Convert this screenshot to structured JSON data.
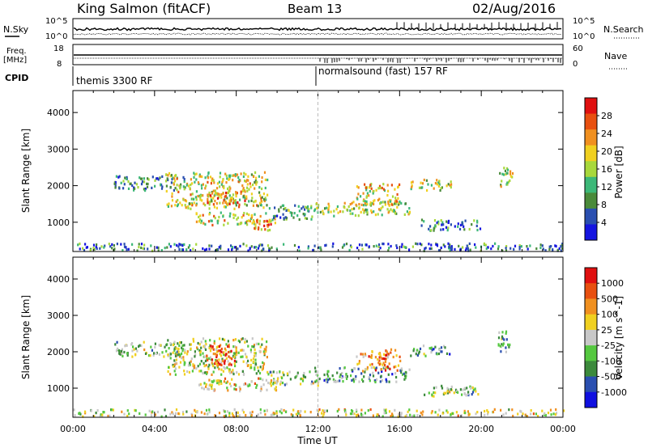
{
  "header": {
    "title": "King Salmon (fitACF)",
    "beam": "Beam 13",
    "date": "02/Aug/2016"
  },
  "strip_labels": {
    "nsky": "N.Sky",
    "nsearch": "N.Search",
    "freq": "Freq.",
    "freq_unit": "[MHz]",
    "nave": "Nave",
    "cpid": "CPID"
  },
  "strip_ticks": {
    "noise_top_left": "10^5",
    "noise_bottom_left": "10^0",
    "noise_top_right": "10^5",
    "noise_bottom_right": "10^0",
    "freq_top": "18",
    "freq_bottom": "8",
    "nave_top": "60",
    "nave_bottom": "0"
  },
  "cpid": {
    "mode1": "themis 3300 RF",
    "mode2": "normalsound (fast) 157 RF"
  },
  "chart_data": [
    {
      "type": "heatmap",
      "panel": "power",
      "ylabel": "Slant Range [km]",
      "xlabel": "Time UT",
      "x_ticks": [
        "00:00",
        "04:00",
        "08:00",
        "12:00",
        "16:00",
        "20:00",
        "00:00"
      ],
      "y_ticks": [
        "1000",
        "2000",
        "3000",
        "4000"
      ],
      "ylim": [
        200,
        4600
      ],
      "xlim_hours": [
        0,
        24
      ],
      "colorbar_label": "Power [dB]",
      "colorbar_ticks": [
        "4",
        "8",
        "12",
        "16",
        "20",
        "24",
        "28"
      ],
      "colorbar_range": [
        0,
        30
      ],
      "colors": [
        "#1515e0",
        "#2a4fb0",
        "#4a8a3a",
        "#3cb878",
        "#a8d83c",
        "#f0d020",
        "#f09020",
        "#e85010",
        "#e01010"
      ],
      "scatter_regions": [
        {
          "t0": 2.0,
          "t1": 5.5,
          "r0": 1900,
          "r1": 2300,
          "level": 0.3
        },
        {
          "t0": 4.5,
          "t1": 9.5,
          "r0": 1400,
          "r1": 2400,
          "level": 0.55
        },
        {
          "t0": 6.5,
          "t1": 8.5,
          "r0": 1500,
          "r1": 1900,
          "level": 0.7
        },
        {
          "t0": 6.0,
          "t1": 10.0,
          "r0": 950,
          "r1": 1300,
          "level": 0.6
        },
        {
          "t0": 8.5,
          "t1": 9.8,
          "r0": 800,
          "r1": 1100,
          "level": 0.75
        },
        {
          "t0": 9.5,
          "t1": 12.0,
          "r0": 1100,
          "r1": 1500,
          "level": 0.35
        },
        {
          "t0": 11.8,
          "t1": 16.5,
          "r0": 1200,
          "r1": 1600,
          "level": 0.5
        },
        {
          "t0": 13.8,
          "t1": 16.0,
          "r0": 1500,
          "r1": 2100,
          "level": 0.6
        },
        {
          "t0": 16.5,
          "t1": 18.5,
          "r0": 1900,
          "r1": 2200,
          "level": 0.5
        },
        {
          "t0": 17.0,
          "t1": 20.0,
          "r0": 800,
          "r1": 1100,
          "level": 0.3
        },
        {
          "t0": 20.8,
          "t1": 21.5,
          "r0": 2000,
          "r1": 2600,
          "level": 0.5
        },
        {
          "t0": 0.0,
          "t1": 24.0,
          "r0": 250,
          "r1": 450,
          "level": 0.25
        }
      ]
    },
    {
      "type": "heatmap",
      "panel": "velocity",
      "ylabel": "Slant Range [km]",
      "xlabel": "Time UT",
      "x_ticks": [
        "00:00",
        "04:00",
        "08:00",
        "12:00",
        "16:00",
        "20:00",
        "00:00"
      ],
      "y_ticks": [
        "1000",
        "2000",
        "3000",
        "4000"
      ],
      "ylim": [
        200,
        4600
      ],
      "xlim_hours": [
        0,
        24
      ],
      "colorbar_label": "Velocity [m s^-1]",
      "colorbar_ticks": [
        "1000",
        "500",
        "100",
        "25",
        "-25",
        "-100",
        "-500",
        "-1000"
      ],
      "colors": [
        "#1010e0",
        "#2a4fb0",
        "#3c8a3c",
        "#55c840",
        "#c8c8c8",
        "#f0d020",
        "#f09020",
        "#e85010",
        "#e01010"
      ],
      "scatter_regions": [
        {
          "t0": 2.0,
          "t1": 5.5,
          "r0": 1900,
          "r1": 2300,
          "level": 0.45
        },
        {
          "t0": 4.5,
          "t1": 9.5,
          "r0": 1400,
          "r1": 2400,
          "level": 0.5
        },
        {
          "t0": 6.5,
          "t1": 8.0,
          "r0": 1600,
          "r1": 2200,
          "level": 0.85
        },
        {
          "t0": 6.0,
          "t1": 10.0,
          "r0": 950,
          "r1": 1300,
          "level": 0.6
        },
        {
          "t0": 9.5,
          "t1": 12.0,
          "r0": 1100,
          "r1": 1500,
          "level": 0.45
        },
        {
          "t0": 11.8,
          "t1": 16.5,
          "r0": 1200,
          "r1": 1600,
          "level": 0.3
        },
        {
          "t0": 13.8,
          "t1": 16.0,
          "r0": 1500,
          "r1": 2100,
          "level": 0.75
        },
        {
          "t0": 16.5,
          "t1": 18.5,
          "r0": 1900,
          "r1": 2200,
          "level": 0.35
        },
        {
          "t0": 17.0,
          "t1": 20.0,
          "r0": 800,
          "r1": 1100,
          "level": 0.45
        },
        {
          "t0": 20.8,
          "t1": 21.5,
          "r0": 2000,
          "r1": 2600,
          "level": 0.35
        },
        {
          "t0": 0.0,
          "t1": 24.0,
          "r0": 250,
          "r1": 450,
          "level": 0.55
        }
      ]
    }
  ]
}
